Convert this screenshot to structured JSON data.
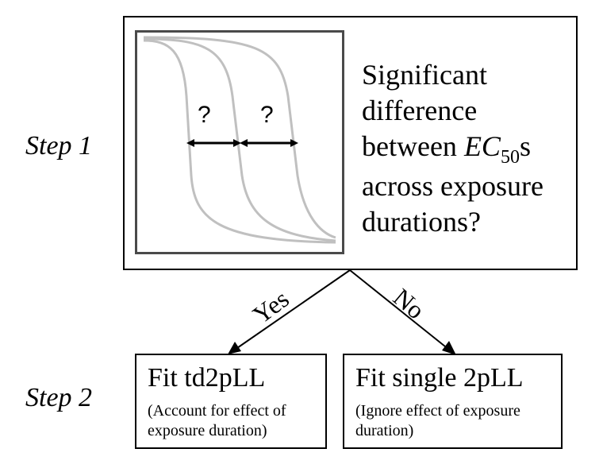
{
  "steps": {
    "step1_label": "Step 1",
    "step2_label": "Step 2"
  },
  "top_box": {
    "question_lines": [
      "Significant",
      "difference",
      "between",
      "s",
      "across exposure",
      "durations?"
    ],
    "ec_symbol": "EC",
    "ec_subscript": "50",
    "arrow_marks": [
      "?",
      "?"
    ]
  },
  "branches": {
    "yes_label": "Yes",
    "no_label": "No"
  },
  "outcomes": {
    "yes": {
      "title": "Fit td2pLL",
      "note_lines": [
        "(Account for effect of",
        "exposure duration)"
      ]
    },
    "no": {
      "title": "Fit single 2pLL",
      "note_lines": [
        "(Ignore effect of exposure",
        "duration)"
      ]
    }
  },
  "colors": {
    "curve": "#c0c0c0",
    "panel_border": "#4a4a4a",
    "line": "#000000"
  }
}
